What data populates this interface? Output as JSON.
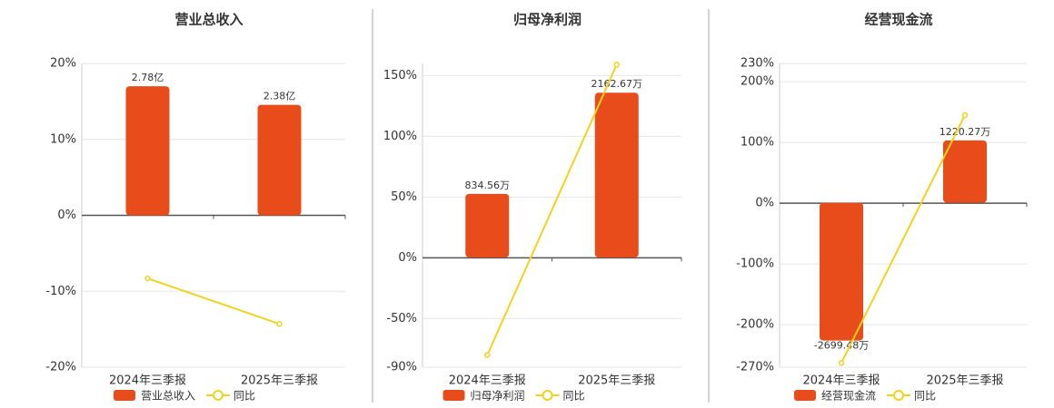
{
  "chart_data": [
    {
      "type": "bar-line",
      "title": "营业总收入",
      "categories": [
        "2024年三季报",
        "2025年三季报"
      ],
      "series": [
        {
          "name": "营业总收入",
          "type": "bar",
          "color": "#e84c1b",
          "axis": "y2",
          "values": [
            2.78,
            2.38
          ],
          "value_labels": [
            "2.78亿",
            "2.38亿"
          ]
        },
        {
          "name": "同比",
          "type": "line",
          "color": "#f2d31b",
          "values": [
            -8.3,
            -14.3
          ]
        }
      ],
      "ylim": [
        -20,
        20
      ],
      "yticks": [
        {
          "value": 20,
          "label": "20%"
        },
        {
          "value": 10,
          "label": "10%"
        },
        {
          "value": 0,
          "label": "0%"
        },
        {
          "value": -10,
          "label": "-10%"
        },
        {
          "value": -20,
          "label": "-20%"
        }
      ],
      "y2lim": [
        -3.27,
        3.27
      ],
      "grid": true
    },
    {
      "type": "bar-line",
      "title": "归母净利润",
      "categories": [
        "2024年三季报",
        "2025年三季报"
      ],
      "series": [
        {
          "name": "归母净利润",
          "type": "bar",
          "color": "#e84c1b",
          "axis": "y2",
          "values": [
            834.56,
            2162.67
          ],
          "value_labels": [
            "834.56万",
            "2162.67万"
          ]
        },
        {
          "name": "同比",
          "type": "line",
          "color": "#f2d31b",
          "values": [
            -80,
            159
          ]
        }
      ],
      "ylim": [
        -90,
        160
      ],
      "yticks": [
        {
          "value": 150,
          "label": "150%"
        },
        {
          "value": 100,
          "label": "100%"
        },
        {
          "value": 50,
          "label": "50%"
        },
        {
          "value": 0,
          "label": "0%"
        },
        {
          "value": -50,
          "label": "-50%"
        },
        {
          "value": -90,
          "label": "-90%"
        }
      ],
      "y2lim": [
        -1440,
        2546
      ],
      "grid": true
    },
    {
      "type": "bar-line",
      "title": "经营现金流",
      "categories": [
        "2024年三季报",
        "2025年三季报"
      ],
      "series": [
        {
          "name": "经营现金流",
          "type": "bar",
          "color": "#e84c1b",
          "axis": "y2",
          "values": [
            -2699.48,
            1220.27
          ],
          "value_labels": [
            "-2699.48万",
            "1220.27万"
          ]
        },
        {
          "name": "同比",
          "type": "line",
          "color": "#f2d31b",
          "values": [
            -263,
            145
          ]
        }
      ],
      "ylim": [
        -270,
        230
      ],
      "yticks": [
        {
          "value": 230,
          "label": "230%"
        },
        {
          "value": 200,
          "label": "200%"
        },
        {
          "value": 100,
          "label": "100%"
        },
        {
          "value": 0,
          "label": "0%"
        },
        {
          "value": -100,
          "label": "-100%"
        },
        {
          "value": -200,
          "label": "-200%"
        },
        {
          "value": -270,
          "label": "-270%"
        }
      ],
      "y2lim": [
        -3222,
        2727
      ],
      "grid": true
    }
  ]
}
